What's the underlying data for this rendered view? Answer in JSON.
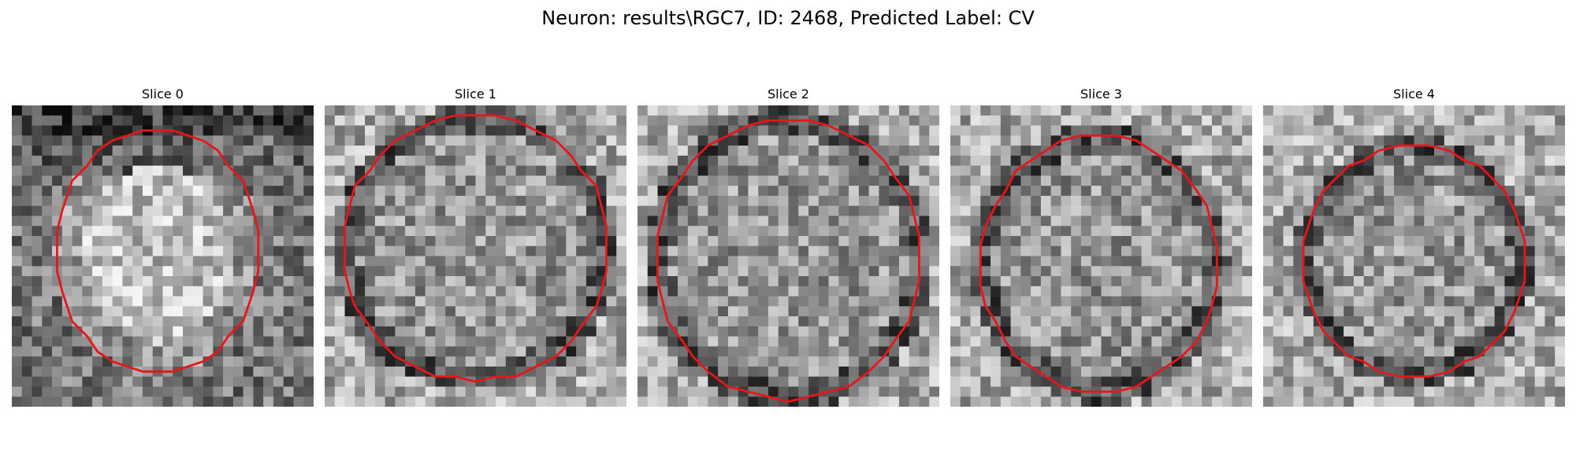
{
  "figure": {
    "suptitle": "Neuron: results\\RGC7, ID: 2468, Predicted Label: CV",
    "contour_color": "#e8151b",
    "colormap": "gray",
    "slices": [
      {
        "title": "Slice 0",
        "bright_center": true
      },
      {
        "title": "Slice 1",
        "bright_center": false
      },
      {
        "title": "Slice 2",
        "bright_center": false
      },
      {
        "title": "Slice 3",
        "bright_center": false
      },
      {
        "title": "Slice 4",
        "bright_center": false
      }
    ]
  }
}
